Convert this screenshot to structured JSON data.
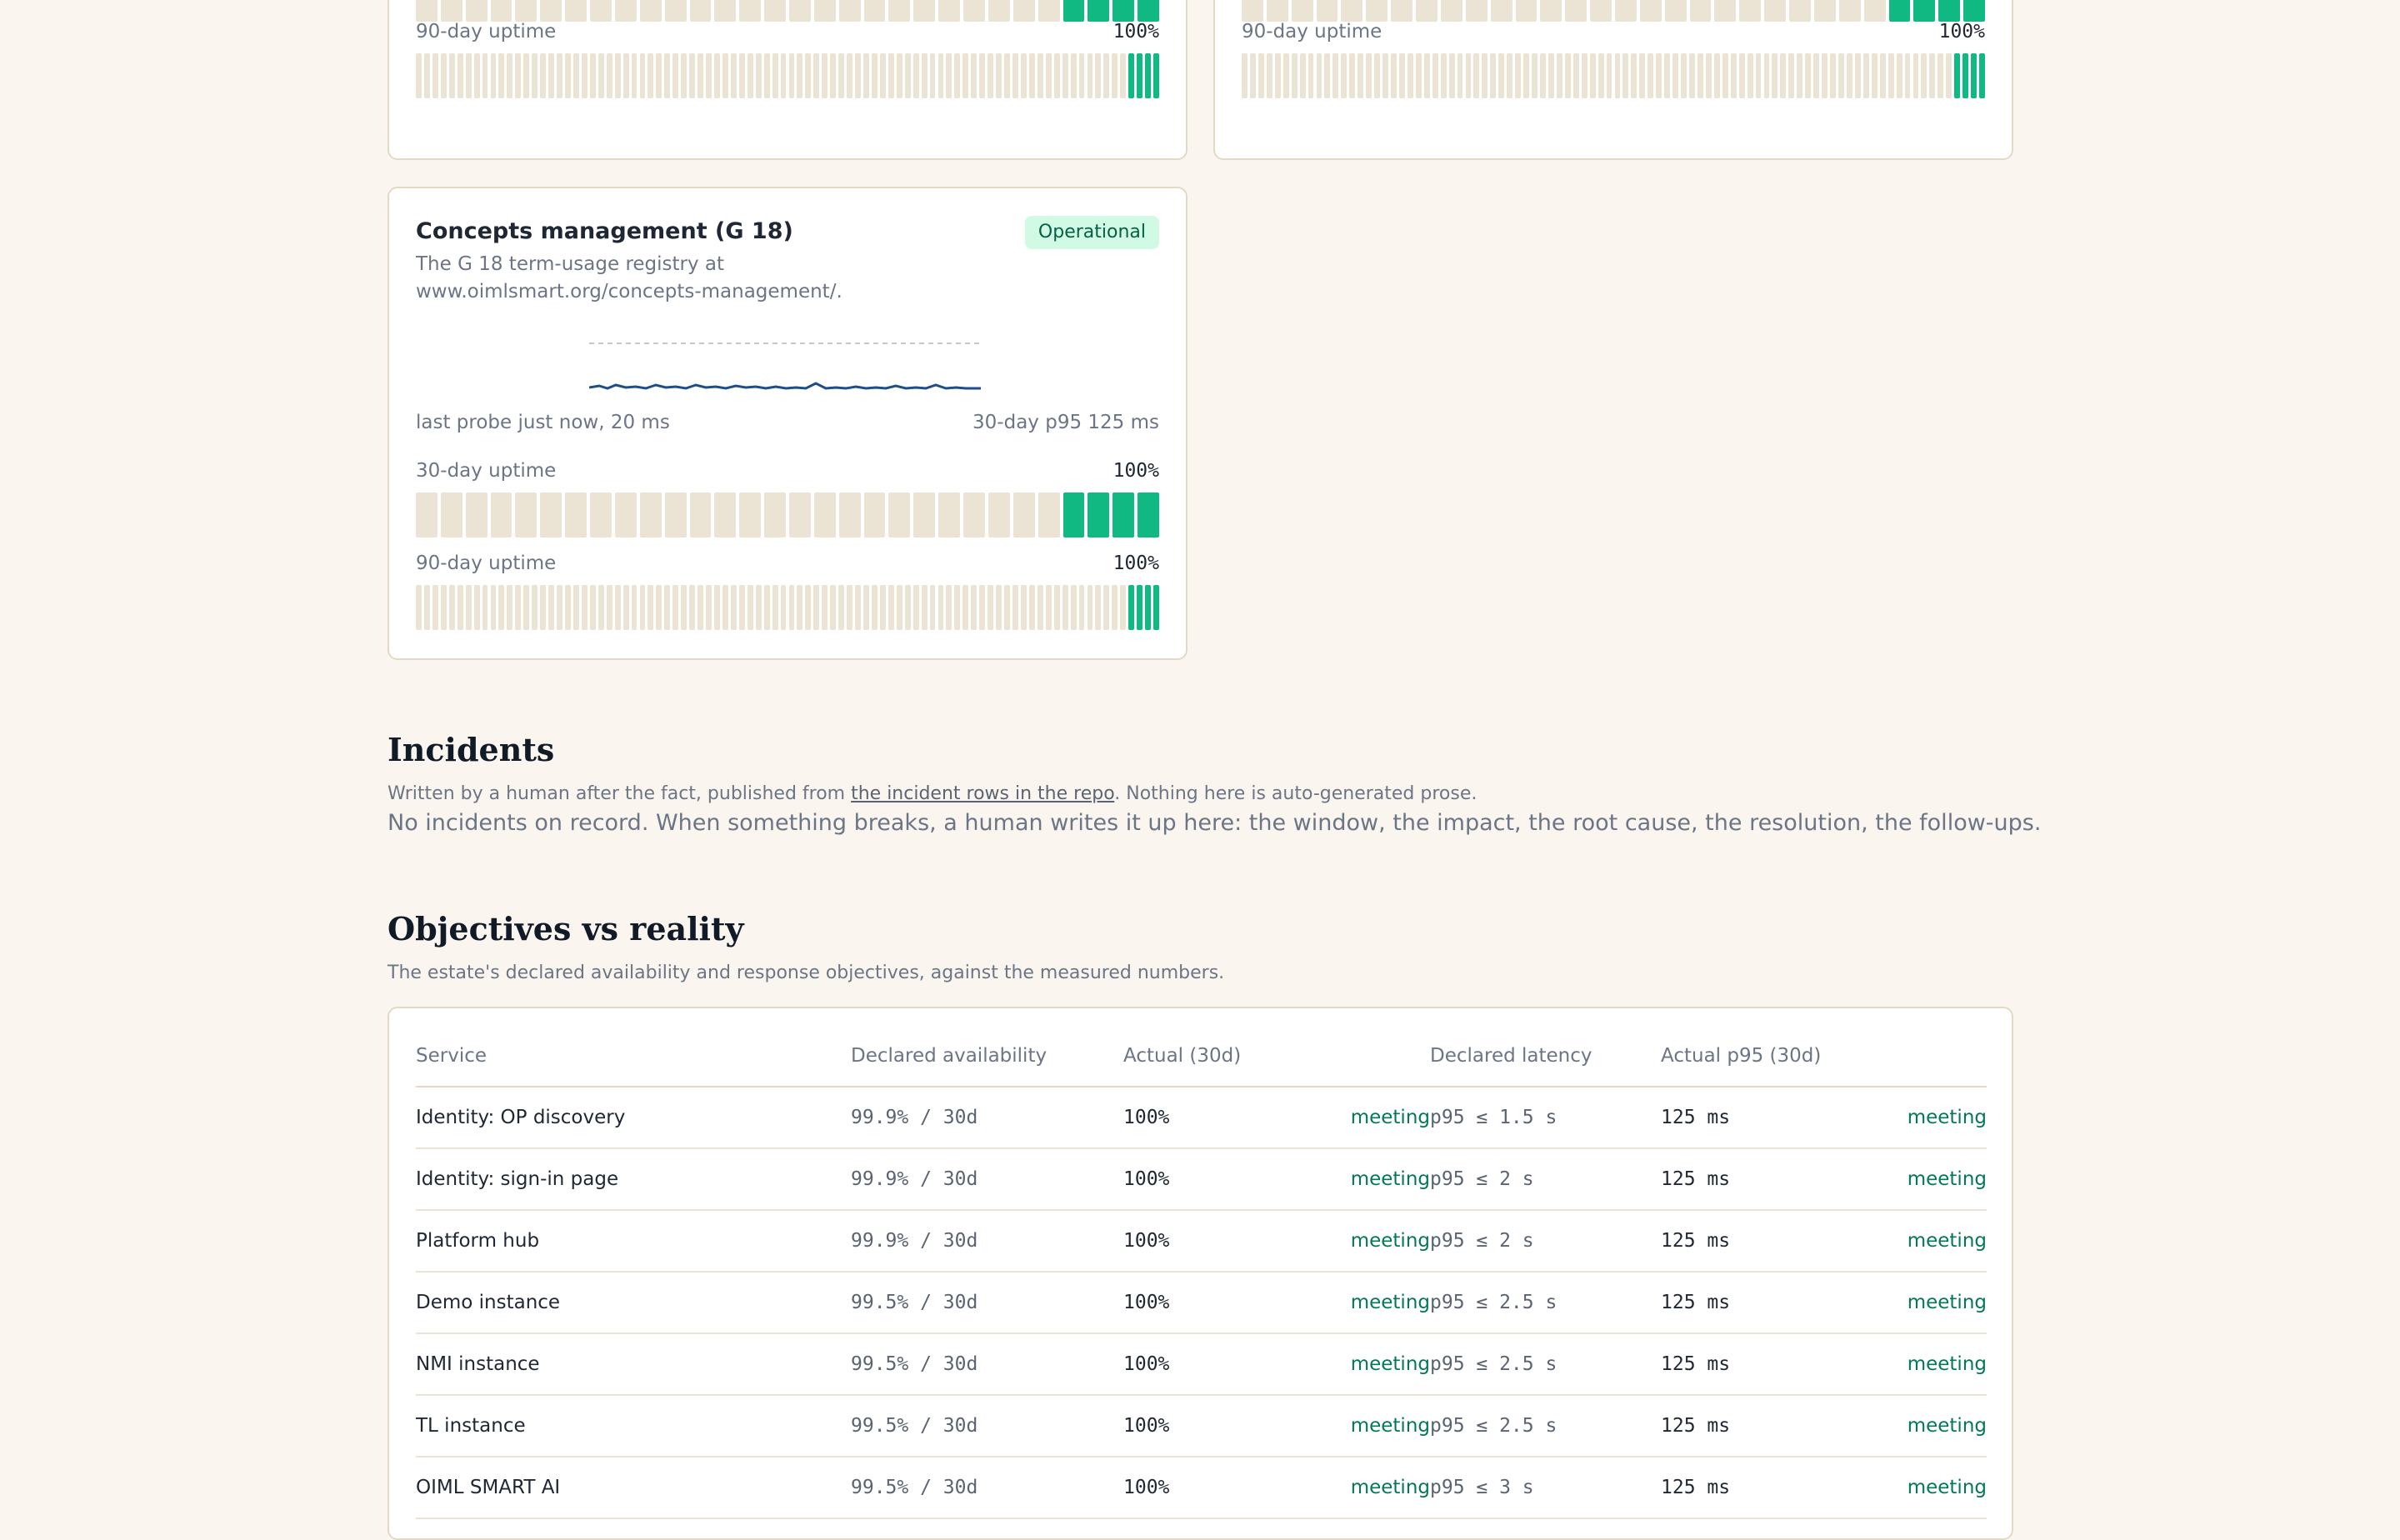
{
  "cards": [
    {
      "id": "top-left",
      "uptime30_bars": {
        "total": 30,
        "up": 4
      },
      "uptime90_label": "90-day uptime",
      "uptime90_pct": "100%",
      "uptime90_bars": {
        "total": 90,
        "up": 4
      }
    },
    {
      "id": "top-right",
      "uptime30_bars": {
        "total": 30,
        "up": 4
      },
      "uptime90_label": "90-day uptime",
      "uptime90_pct": "100%",
      "uptime90_bars": {
        "total": 90,
        "up": 4
      }
    },
    {
      "id": "concepts",
      "title": "Concepts management (G 18)",
      "status": "Operational",
      "description": "The G 18 term-usage registry at www.oimlsmart.org/concepts-management/.",
      "last_probe": "last probe just now, 20 ms",
      "p95": "30-day p95 125 ms",
      "uptime30_label": "30-day uptime",
      "uptime30_pct": "100%",
      "uptime30_bars": {
        "total": 30,
        "up": 4
      },
      "uptime90_label": "90-day uptime",
      "uptime90_pct": "100%",
      "uptime90_bars": {
        "total": 90,
        "up": 4
      }
    }
  ],
  "colors": {
    "up": "#10b981",
    "nodata": "#ebe4d5",
    "sparkline": "#1d4e89",
    "meeting": "#047857"
  },
  "incidents": {
    "title": "Incidents",
    "subtitle_before": "Written by a human after the fact, published from ",
    "subtitle_link": "the incident rows in the repo",
    "subtitle_after": ". Nothing here is auto-generated prose.",
    "empty": "No incidents on record. When something breaks, a human writes it up here: the window, the impact, the root cause, the resolution, the follow-ups."
  },
  "objectives": {
    "title": "Objectives vs reality",
    "subtitle": "The estate's declared availability and response objectives, against the measured numbers.",
    "headers": [
      "Service",
      "Declared availability",
      "Actual (30d)",
      "",
      "Declared latency",
      "Actual p95 (30d)",
      ""
    ],
    "rows": [
      {
        "service": "Identity: OP discovery",
        "declared": "99.9% / 30d",
        "actual": "100%",
        "avail_status": "meeting",
        "latency": "p95 ≤ 1.5 s",
        "p95": "125 ms",
        "latency_status": "meeting"
      },
      {
        "service": "Identity: sign-in page",
        "declared": "99.9% / 30d",
        "actual": "100%",
        "avail_status": "meeting",
        "latency": "p95 ≤ 2 s",
        "p95": "125 ms",
        "latency_status": "meeting"
      },
      {
        "service": "Platform hub",
        "declared": "99.9% / 30d",
        "actual": "100%",
        "avail_status": "meeting",
        "latency": "p95 ≤ 2 s",
        "p95": "125 ms",
        "latency_status": "meeting"
      },
      {
        "service": "Demo instance",
        "declared": "99.5% / 30d",
        "actual": "100%",
        "avail_status": "meeting",
        "latency": "p95 ≤ 2.5 s",
        "p95": "125 ms",
        "latency_status": "meeting"
      },
      {
        "service": "NMI instance",
        "declared": "99.5% / 30d",
        "actual": "100%",
        "avail_status": "meeting",
        "latency": "p95 ≤ 2.5 s",
        "p95": "125 ms",
        "latency_status": "meeting"
      },
      {
        "service": "TL instance",
        "declared": "99.5% / 30d",
        "actual": "100%",
        "avail_status": "meeting",
        "latency": "p95 ≤ 2.5 s",
        "p95": "125 ms",
        "latency_status": "meeting"
      },
      {
        "service": "OIML SMART AI",
        "declared": "99.5% / 30d",
        "actual": "100%",
        "avail_status": "meeting",
        "latency": "p95 ≤ 3 s",
        "p95": "125 ms",
        "latency_status": "meeting"
      }
    ]
  }
}
